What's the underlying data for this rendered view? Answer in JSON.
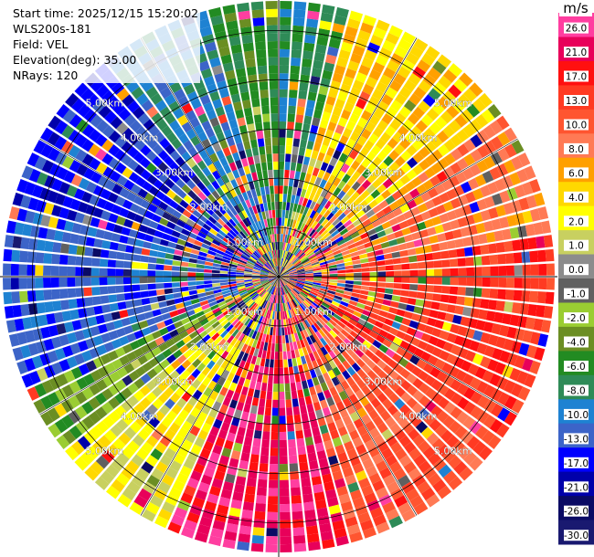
{
  "info": {
    "start_time": "Start time: 2025/12/15 15:20:02",
    "station": "WLS200s-181",
    "field": "Field: VEL",
    "elevation": "Elevation(deg): 35.00",
    "nrays": "NRays: 120"
  },
  "colorbar": {
    "unit": "m/s",
    "bins": [
      {
        "label": "26.0",
        "color": "#ff3ea0"
      },
      {
        "label": "21.0",
        "color": "#e8005a"
      },
      {
        "label": "17.0",
        "color": "#ff1010"
      },
      {
        "label": "13.0",
        "color": "#ff3a22"
      },
      {
        "label": "10.0",
        "color": "#ff5530"
      },
      {
        "label": "8.0",
        "color": "#ff7a55"
      },
      {
        "label": "6.0",
        "color": "#ffa000"
      },
      {
        "label": "4.0",
        "color": "#ffd800"
      },
      {
        "label": "2.0",
        "color": "#ffff00"
      },
      {
        "label": "1.0",
        "color": "#c8d060"
      },
      {
        "label": "0.0",
        "color": "#8c8c8c"
      },
      {
        "label": "-1.0",
        "color": "#606060"
      },
      {
        "label": "-2.0",
        "color": "#9acd32"
      },
      {
        "label": "-4.0",
        "color": "#6b8e23"
      },
      {
        "label": "-6.0",
        "color": "#228b22"
      },
      {
        "label": "-8.0",
        "color": "#2e8b57"
      },
      {
        "label": "-10.0",
        "color": "#1e82d2"
      },
      {
        "label": "-13.0",
        "color": "#3c64c8"
      },
      {
        "label": "-17.0",
        "color": "#0000ff"
      },
      {
        "label": "-21.0",
        "color": "#0000aa"
      },
      {
        "label": "-26.0",
        "color": "#0a0a64"
      },
      {
        "label": "-30.0",
        "color": "#191970"
      }
    ]
  },
  "chart_data": {
    "type": "heatmap",
    "projection": "polar PPI",
    "field": "VEL",
    "units": "m/s",
    "nrays": 120,
    "range_unit": "km",
    "range_rings": [
      {
        "range_km": 1.0,
        "label": "1.00km"
      },
      {
        "range_km": 2.0,
        "label": "2.00km"
      },
      {
        "range_km": 3.0,
        "label": "3.00km"
      },
      {
        "range_km": 4.0,
        "label": "4.00km"
      },
      {
        "range_km": 5.0,
        "label": "5.00km"
      }
    ],
    "max_range_km": 5.6,
    "ring_label_azimuths_deg": [
      45,
      135,
      225,
      315
    ],
    "grid": true,
    "pattern": "coherent sectors: negative (blue/green) toward west and south-west, positive (orange/red) toward east and south-east, yellow toward north-east, noisy mixed colors near the center"
  }
}
